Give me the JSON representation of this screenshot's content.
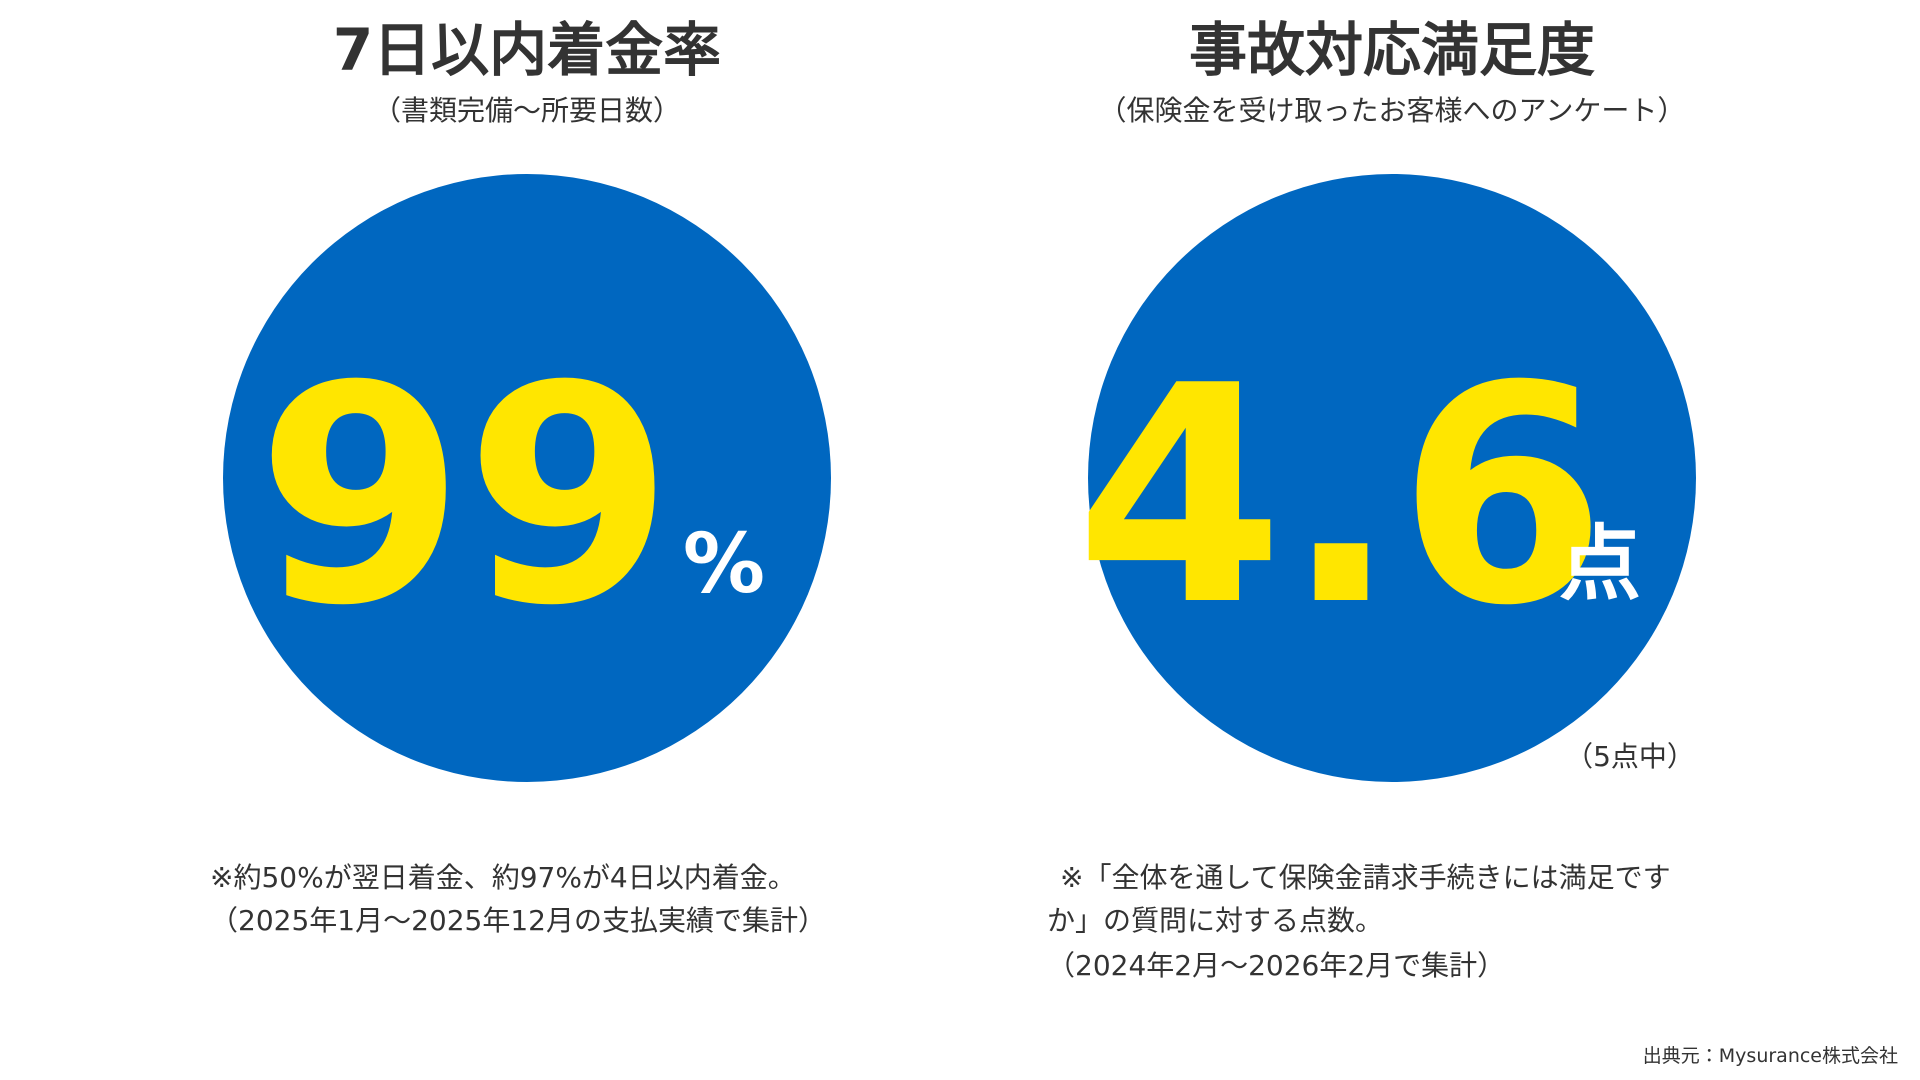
{
  "panels": [
    {
      "title": "7日以内着金率",
      "subtitle": "（書類完備〜所要日数）",
      "value": "99",
      "unit": "%",
      "notes": [
        "※約50%が翌日着金、約97%が4日以内着金。",
        "（2025年1月〜2025年12月の支払実績で集計）"
      ]
    },
    {
      "title": "事故対応満足度",
      "subtitle": "（保険金を受け取ったお客様へのアンケート）",
      "value": "4.6",
      "unit": "点",
      "scale_note": "（5点中）",
      "notes": [
        "※「全体を通して保険金請求手続きには満足です",
        "か」の質問に対する点数。",
        "（2024年2月〜2026年2月で集計）"
      ]
    }
  ],
  "source": "出典元：Mysurance株式会社"
}
